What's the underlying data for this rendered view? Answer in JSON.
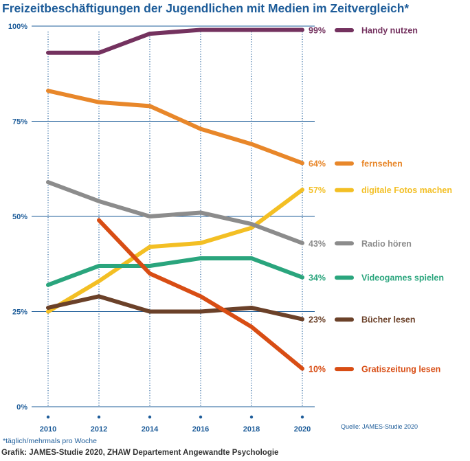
{
  "page": {
    "title": "Freizeitbeschäftigungen der Jugendlichen mit Medien im Zeitvergleich*",
    "footnote": "*täglich/mehrmals pro Woche",
    "credit": "Grafik: JAMES-Studie 2020, ZHAW Departement Angewandte Psychologie",
    "source": "Quelle: JAMES-Studie 2020"
  },
  "chart_data": {
    "type": "line",
    "title": "Freizeitbeschäftigungen der Jugendlichen mit Medien im Zeitvergleich*",
    "xlabel": "",
    "ylabel": "",
    "x": [
      2010,
      2012,
      2014,
      2016,
      2018,
      2020
    ],
    "x_tick_labels": [
      "2010",
      "2012",
      "2014",
      "2016",
      "2018",
      "2020"
    ],
    "ylim": [
      0,
      100
    ],
    "y_ticks": [
      0,
      25,
      50,
      75,
      100
    ],
    "y_tick_labels": [
      "0%",
      "25%",
      "50%",
      "75%",
      "100%"
    ],
    "grid": "horizontal solid, vertical dotted",
    "legend": "right, end labels",
    "series": [
      {
        "name": "Handy nutzen",
        "end_label": "99%",
        "color": "#74325f",
        "values": [
          93,
          93,
          98,
          99,
          99,
          99
        ]
      },
      {
        "name": "fernsehen",
        "end_label": "64%",
        "color": "#e8872a",
        "values": [
          83,
          80,
          79,
          73,
          69,
          64
        ]
      },
      {
        "name": "digitale Fotos machen",
        "end_label": "57%",
        "color": "#f3bf24",
        "values": [
          25,
          33,
          42,
          43,
          47,
          57
        ]
      },
      {
        "name": "Radio hören",
        "end_label": "43%",
        "color": "#8c8c8c",
        "values": [
          59,
          54,
          50,
          51,
          48,
          43
        ]
      },
      {
        "name": "Videogames spielen",
        "end_label": "34%",
        "color": "#2aa57d",
        "values": [
          32,
          37,
          37,
          39,
          39,
          34
        ]
      },
      {
        "name": "Bücher lesen",
        "end_label": "23%",
        "color": "#6b4129",
        "values": [
          26,
          29,
          25,
          25,
          26,
          23
        ]
      },
      {
        "name": "Gratiszeitung lesen",
        "end_label": "10%",
        "color": "#d84d14",
        "values": [
          null,
          49,
          35,
          29,
          21,
          10
        ]
      }
    ]
  }
}
